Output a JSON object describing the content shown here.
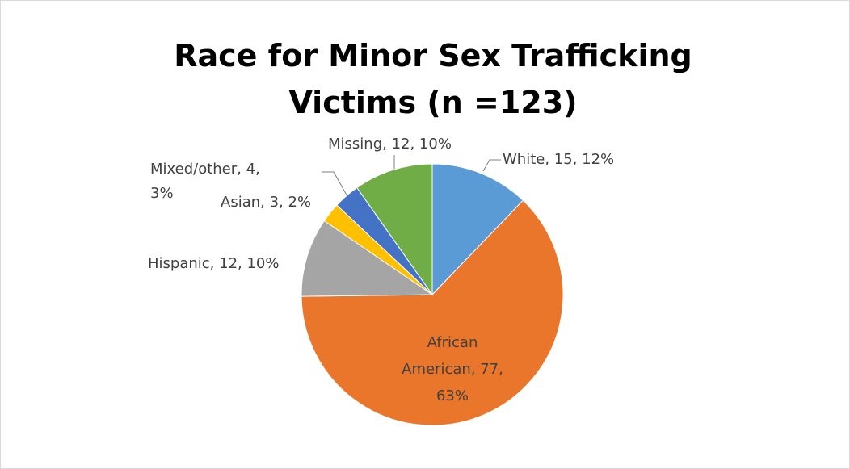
{
  "chart_data": {
    "type": "pie",
    "title": "Race for Minor Sex Trafficking Victims (n =123)",
    "categories": [
      "White",
      "African American",
      "Hispanic",
      "Asian",
      "Mixed/other",
      "Missing"
    ],
    "values": [
      15,
      77,
      12,
      3,
      4,
      12
    ],
    "value_labels": [
      "White, 15, 12%",
      "African American, 77, 63%",
      "Hispanic, 12, 10%",
      "Asian, 3, 2%",
      "Mixed/other, 4, 3%",
      "Missing, 12, 10%"
    ],
    "colors": [
      "#5b9bd5",
      "#e9762b",
      "#a5a5a5",
      "#ffc000",
      "#4472c4",
      "#70ad47"
    ]
  }
}
